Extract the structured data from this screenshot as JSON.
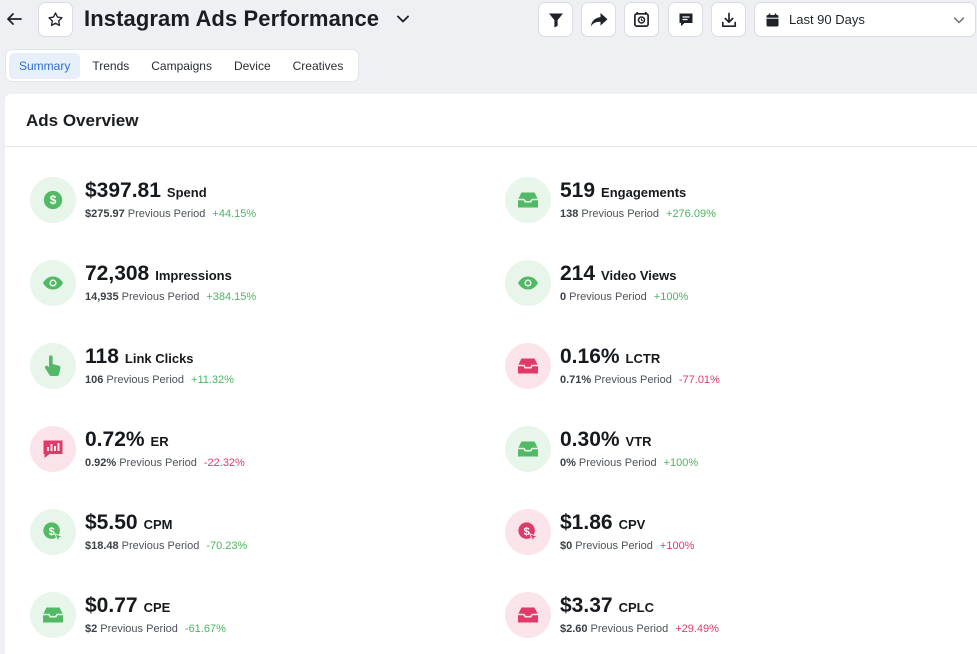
{
  "header": {
    "title": "Instagram Ads Performance",
    "date_range": "Last 90 Days"
  },
  "tabs": [
    {
      "label": "Summary",
      "active": true
    },
    {
      "label": "Trends"
    },
    {
      "label": "Campaigns"
    },
    {
      "label": "Device"
    },
    {
      "label": "Creatives"
    }
  ],
  "overview": {
    "title": "Ads Overview",
    "metrics": [
      {
        "value": "$397.81",
        "label": "Spend",
        "prev": "$275.97",
        "prev_label": "Previous Period",
        "change": "+44.15%",
        "icon": "dollar-icon"
      },
      {
        "value": "519",
        "label": "Engagements",
        "prev": "138",
        "prev_label": "Previous Period",
        "change": "+276.09%",
        "icon": "inbox-icon"
      },
      {
        "value": "72,308",
        "label": "Impressions",
        "prev": "14,935",
        "prev_label": "Previous Period",
        "change": "+384.15%",
        "icon": "eye-icon"
      },
      {
        "value": "214",
        "label": "Video Views",
        "prev": "0",
        "prev_label": "Previous Period",
        "change": "+100%",
        "icon": "eye-icon"
      },
      {
        "value": "118",
        "label": "Link Clicks",
        "prev": "106",
        "prev_label": "Previous Period",
        "change": "+11.32%",
        "icon": "pointer-icon"
      },
      {
        "value": "0.16%",
        "label": "LCTR",
        "prev": "0.71%",
        "prev_label": "Previous Period",
        "change": "-77.01%",
        "icon": "inbox-icon"
      },
      {
        "value": "0.72%",
        "label": "ER",
        "prev": "0.92%",
        "prev_label": "Previous Period",
        "change": "-22.32%",
        "icon": "chart-message-icon"
      },
      {
        "value": "0.30%",
        "label": "VTR",
        "prev": "0%",
        "prev_label": "Previous Period",
        "change": "+100%",
        "icon": "inbox-icon"
      },
      {
        "value": "$5.50",
        "label": "CPM",
        "prev": "$18.48",
        "prev_label": "Previous Period",
        "change": "-70.23%",
        "icon": "dollar-cursor-icon"
      },
      {
        "value": "$1.86",
        "label": "CPV",
        "prev": "$0",
        "prev_label": "Previous Period",
        "change": "+100%",
        "icon": "dollar-cursor-icon"
      },
      {
        "value": "$0.77",
        "label": "CPE",
        "prev": "$2",
        "prev_label": "Previous Period",
        "change": "-61.67%",
        "icon": "inbox-icon"
      },
      {
        "value": "$3.37",
        "label": "CPLC",
        "prev": "$2.60",
        "prev_label": "Previous Period",
        "change": "+29.49%",
        "icon": "inbox-icon"
      }
    ]
  },
  "colors": {
    "green": "#4cb461",
    "red": "#e03a6a",
    "accent": "#2f6fd6"
  }
}
